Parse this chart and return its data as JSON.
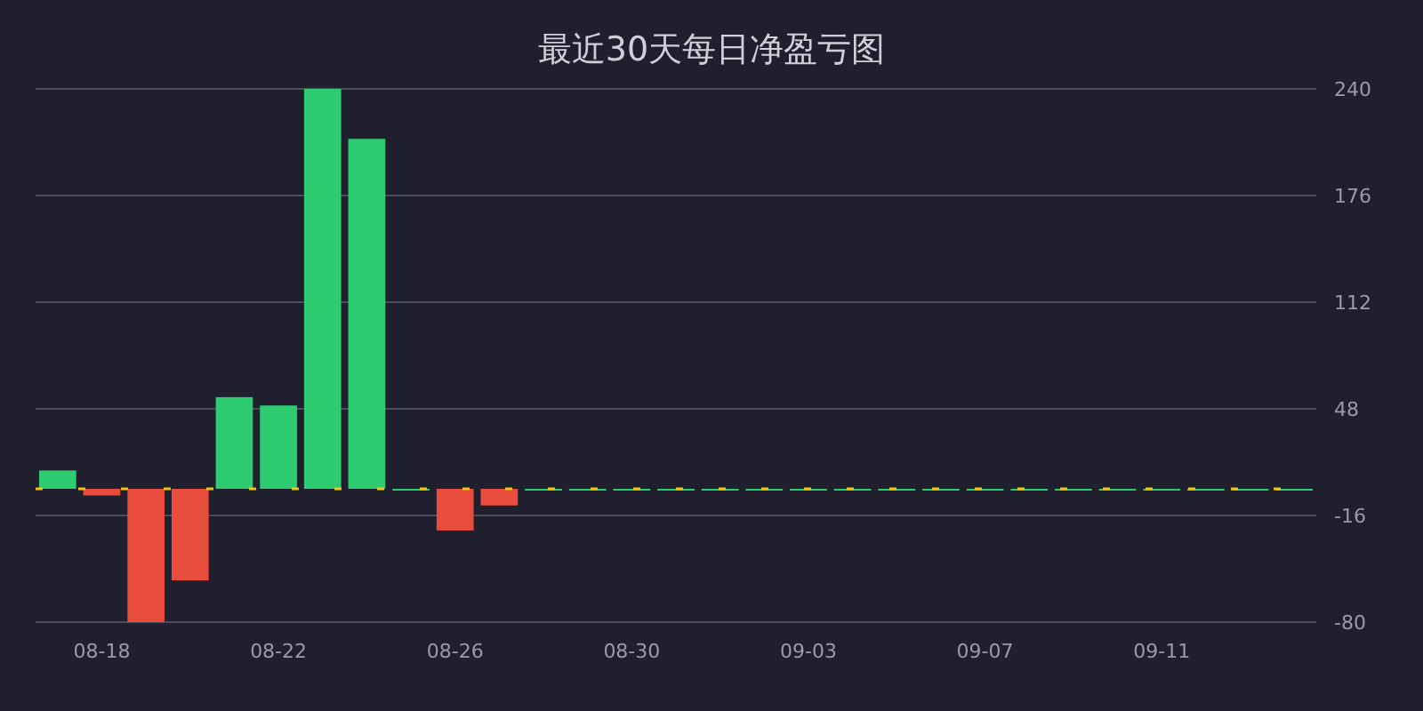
{
  "chart_data": {
    "type": "bar",
    "title": "最近30天每日净盈亏图",
    "categories": [
      null,
      "08-18",
      null,
      null,
      null,
      "08-22",
      null,
      null,
      null,
      "08-26",
      null,
      null,
      null,
      "08-30",
      null,
      null,
      null,
      "09-03",
      null,
      null,
      null,
      "09-07",
      null,
      null,
      null,
      "09-11",
      null,
      null,
      null
    ],
    "values": [
      11,
      -4,
      -80,
      -55,
      55,
      50,
      240,
      210,
      0,
      -25,
      -10,
      0,
      0,
      0,
      0,
      0,
      0,
      0,
      0,
      0,
      0,
      0,
      0,
      0,
      0,
      0,
      0,
      0,
      0
    ],
    "colors": [
      "#2ecc71",
      "#e74c3c",
      "#e74c3c",
      "#e74c3c",
      "#2ecc71",
      "#2ecc71",
      "#2ecc71",
      "#2ecc71",
      "#2ecc71",
      "#e74c3c",
      "#e74c3c",
      "#2ecc71",
      "#2ecc71",
      "#2ecc71",
      "#2ecc71",
      "#2ecc71",
      "#2ecc71",
      "#2ecc71",
      "#2ecc71",
      "#2ecc71",
      "#2ecc71",
      "#2ecc71",
      "#2ecc71",
      "#2ecc71",
      "#2ecc71",
      "#2ecc71",
      "#2ecc71",
      "#2ecc71",
      "#2ecc71"
    ],
    "ylim": [
      -80,
      240
    ],
    "yticks": [
      -80,
      -16,
      48,
      112,
      176,
      240
    ],
    "grid": "y",
    "ref_lines": [
      {
        "axis": "y",
        "value": 0,
        "color": "#f1c40f"
      }
    ]
  }
}
